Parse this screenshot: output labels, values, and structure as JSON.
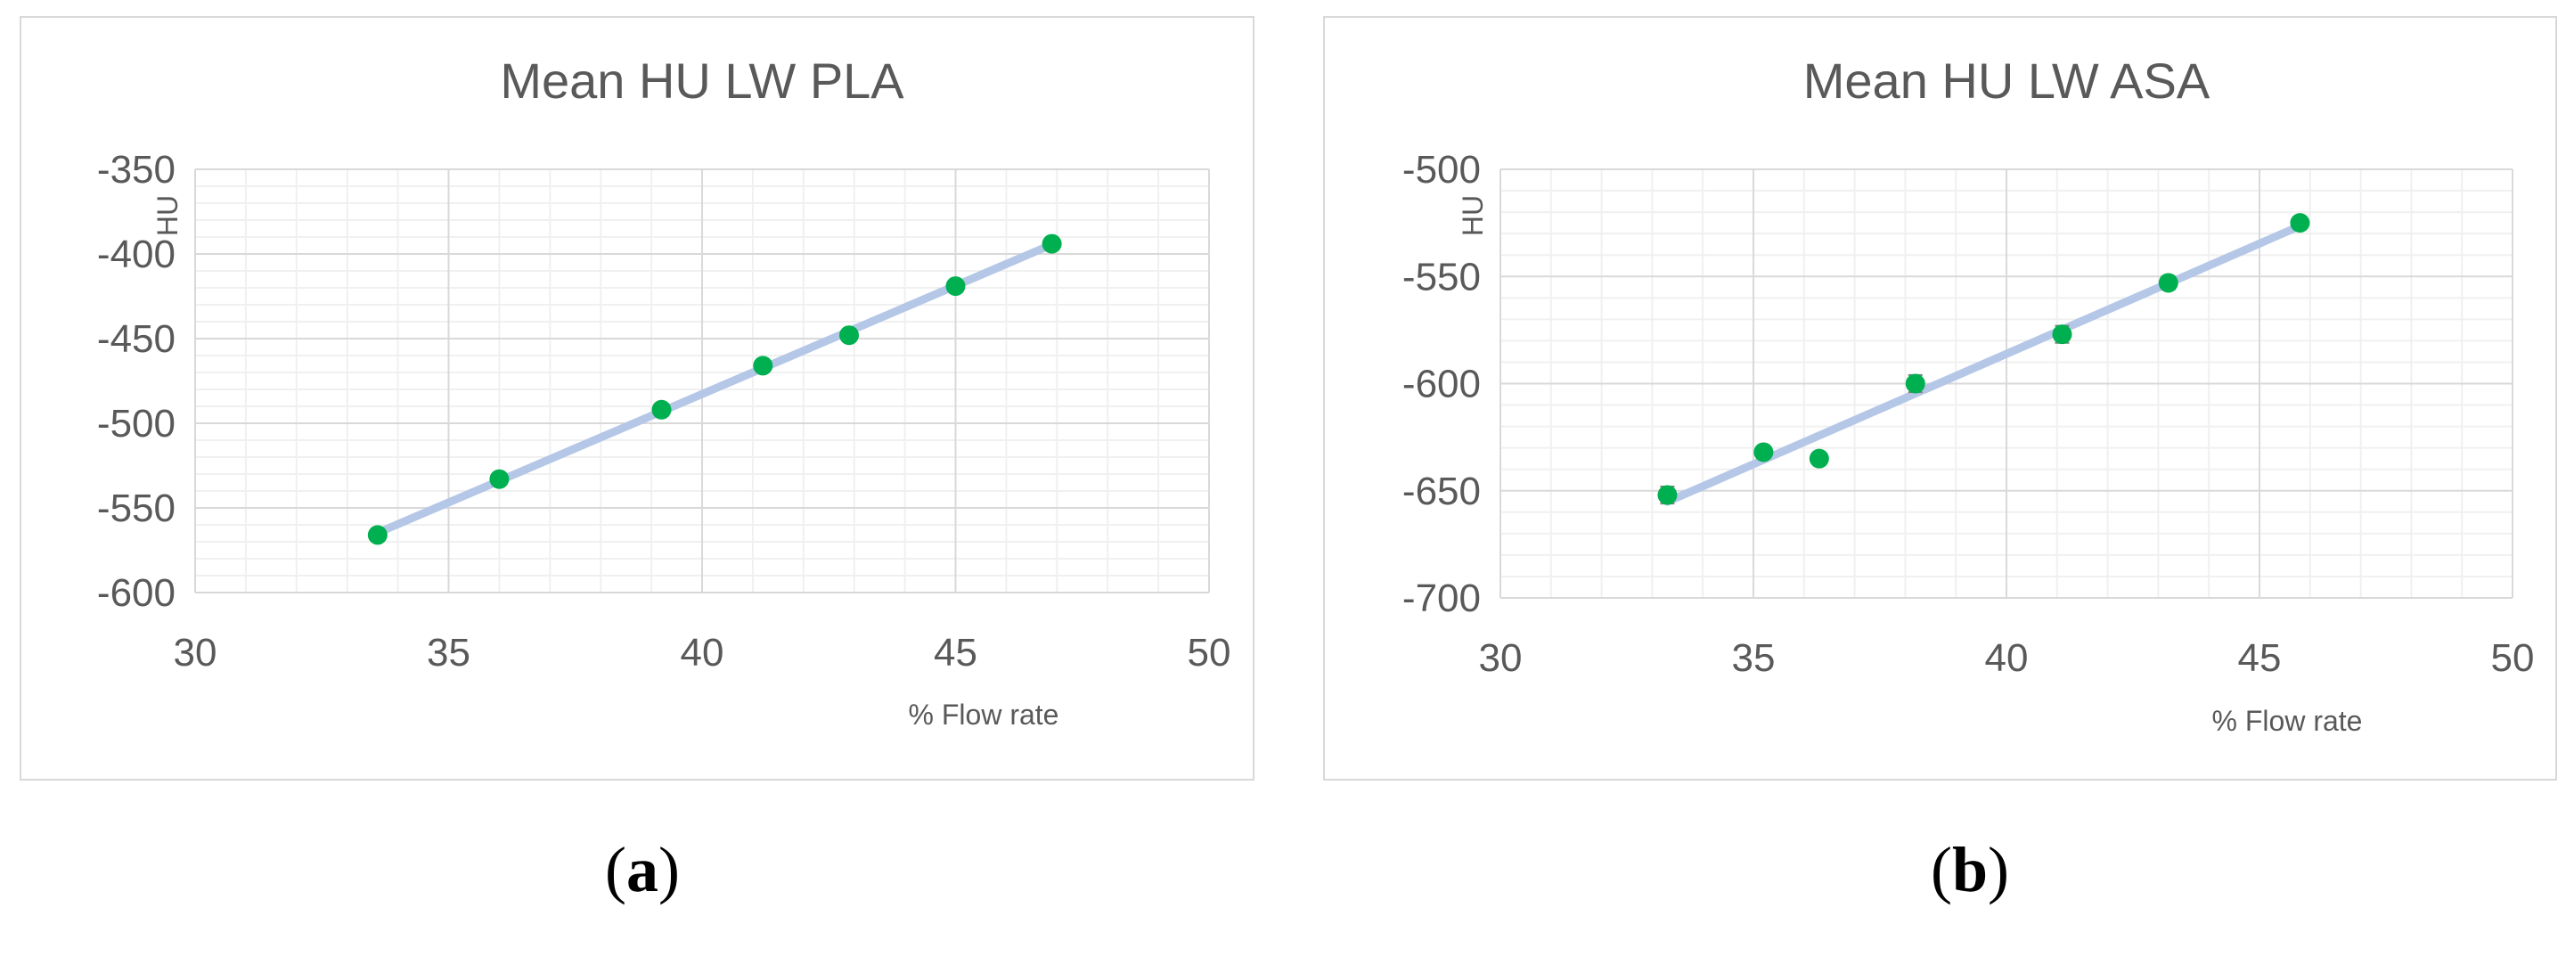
{
  "colors": {
    "marker": "#00b050",
    "trendline": "#b4c7e7",
    "major_grid": "#d9d9d9",
    "minor_grid": "#f0f0f0",
    "text": "#595959"
  },
  "captions": [
    {
      "open": "(",
      "letter": "a",
      "close": ")"
    },
    {
      "open": "(",
      "letter": "b",
      "close": ")"
    }
  ],
  "chart_data": [
    {
      "type": "scatter",
      "title": "Mean HU LW PLA",
      "xlabel": "% Flow rate",
      "ylabel": "HU",
      "xlim": [
        30,
        50
      ],
      "ylim": [
        -600,
        -350
      ],
      "xticks": [
        30,
        35,
        40,
        45,
        50
      ],
      "yticks": [
        -350,
        -400,
        -450,
        -500,
        -550,
        -600
      ],
      "x_minor_step": 1,
      "y_minor_step": 10,
      "grid": true,
      "legend": "none",
      "trendline": "linear",
      "points": [
        {
          "x": 33.6,
          "y": -566
        },
        {
          "x": 36.0,
          "y": -533
        },
        {
          "x": 39.2,
          "y": -492
        },
        {
          "x": 41.2,
          "y": -466
        },
        {
          "x": 42.9,
          "y": -448
        },
        {
          "x": 45.0,
          "y": -419
        },
        {
          "x": 46.9,
          "y": -394
        }
      ]
    },
    {
      "type": "scatter",
      "title": "Mean HU LW ASA",
      "xlabel": "% Flow rate",
      "ylabel": "HU",
      "xlim": [
        30,
        50
      ],
      "ylim": [
        -700,
        -500
      ],
      "xticks": [
        30,
        35,
        40,
        45,
        50
      ],
      "yticks": [
        -500,
        -550,
        -600,
        -650,
        -700
      ],
      "x_minor_step": 1,
      "y_minor_step": 10,
      "grid": true,
      "legend": "none",
      "trendline": "linear",
      "points": [
        {
          "x": 33.3,
          "y": -652,
          "err": 4
        },
        {
          "x": 35.2,
          "y": -632,
          "err": 2
        },
        {
          "x": 36.3,
          "y": -635,
          "err": 2
        },
        {
          "x": 38.2,
          "y": -600,
          "err": 4
        },
        {
          "x": 41.1,
          "y": -577,
          "err": 4
        },
        {
          "x": 43.2,
          "y": -553,
          "err": 3
        },
        {
          "x": 45.8,
          "y": -525,
          "err": 2
        }
      ]
    }
  ]
}
